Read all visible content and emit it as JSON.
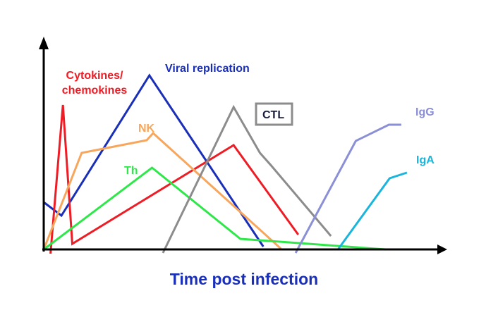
{
  "chart_data": {
    "type": "line",
    "title": "",
    "xlabel": "Time post infection",
    "ylabel": "",
    "xlim": [
      0,
      100
    ],
    "ylim": [
      0,
      100
    ],
    "axis_color": "#000000",
    "series": [
      {
        "name": "Viral replication",
        "label": "Viral replication",
        "color": "#1a2fb8",
        "label_color": "#1a2fb8",
        "x": [
          0,
          4.7,
          28.1,
          58.4
        ],
        "y": [
          26.8,
          19.2,
          98.8,
          1.6
        ]
      },
      {
        "name": "Cytokines/ chemokines",
        "label_lines": [
          "Cytokines/",
          "chemokines"
        ],
        "color": "#ee1c24",
        "label_color": "#ee1c24",
        "x": [
          1.8,
          5.1,
          7.6,
          50.5,
          67.7
        ],
        "y": [
          -2.4,
          82.0,
          3.2,
          59.2,
          8.4
        ]
      },
      {
        "name": "NK",
        "label": "NK",
        "color": "#f7a65c",
        "label_color": "#f7a65c",
        "x": [
          0,
          10.1,
          27.4,
          29.1,
          63.1
        ],
        "y": [
          0,
          54.8,
          62.0,
          66.0,
          0.4
        ]
      },
      {
        "name": "Th",
        "label": "Th",
        "color": "#2ee84a",
        "label_color": "#2ee84a",
        "x": [
          0,
          28.8,
          52.3,
          90.9
        ],
        "y": [
          0,
          46.4,
          6.0,
          0
        ]
      },
      {
        "name": "CTL",
        "label": "CTL",
        "color": "#8c8c8c",
        "label_color": "#1a1f3d",
        "boxed": true,
        "x": [
          31.7,
          50.5,
          57.5,
          60.5,
          76.4
        ],
        "y": [
          -2.0,
          80.8,
          54.8,
          47.6,
          7.6
        ]
      },
      {
        "name": "IgG",
        "label": "IgG",
        "color": "#8b8fd6",
        "label_color": "#8b8fd6",
        "x": [
          67.0,
          83.0,
          91.8,
          95.1
        ],
        "y": [
          -2.0,
          61.6,
          70.8,
          70.8
        ]
      },
      {
        "name": "IgA",
        "label": "IgA",
        "color": "#1ab4dc",
        "label_color": "#1ab4dc",
        "x": [
          78.4,
          92.0,
          96.6
        ],
        "y": [
          0.4,
          40.4,
          43.6
        ]
      }
    ]
  }
}
